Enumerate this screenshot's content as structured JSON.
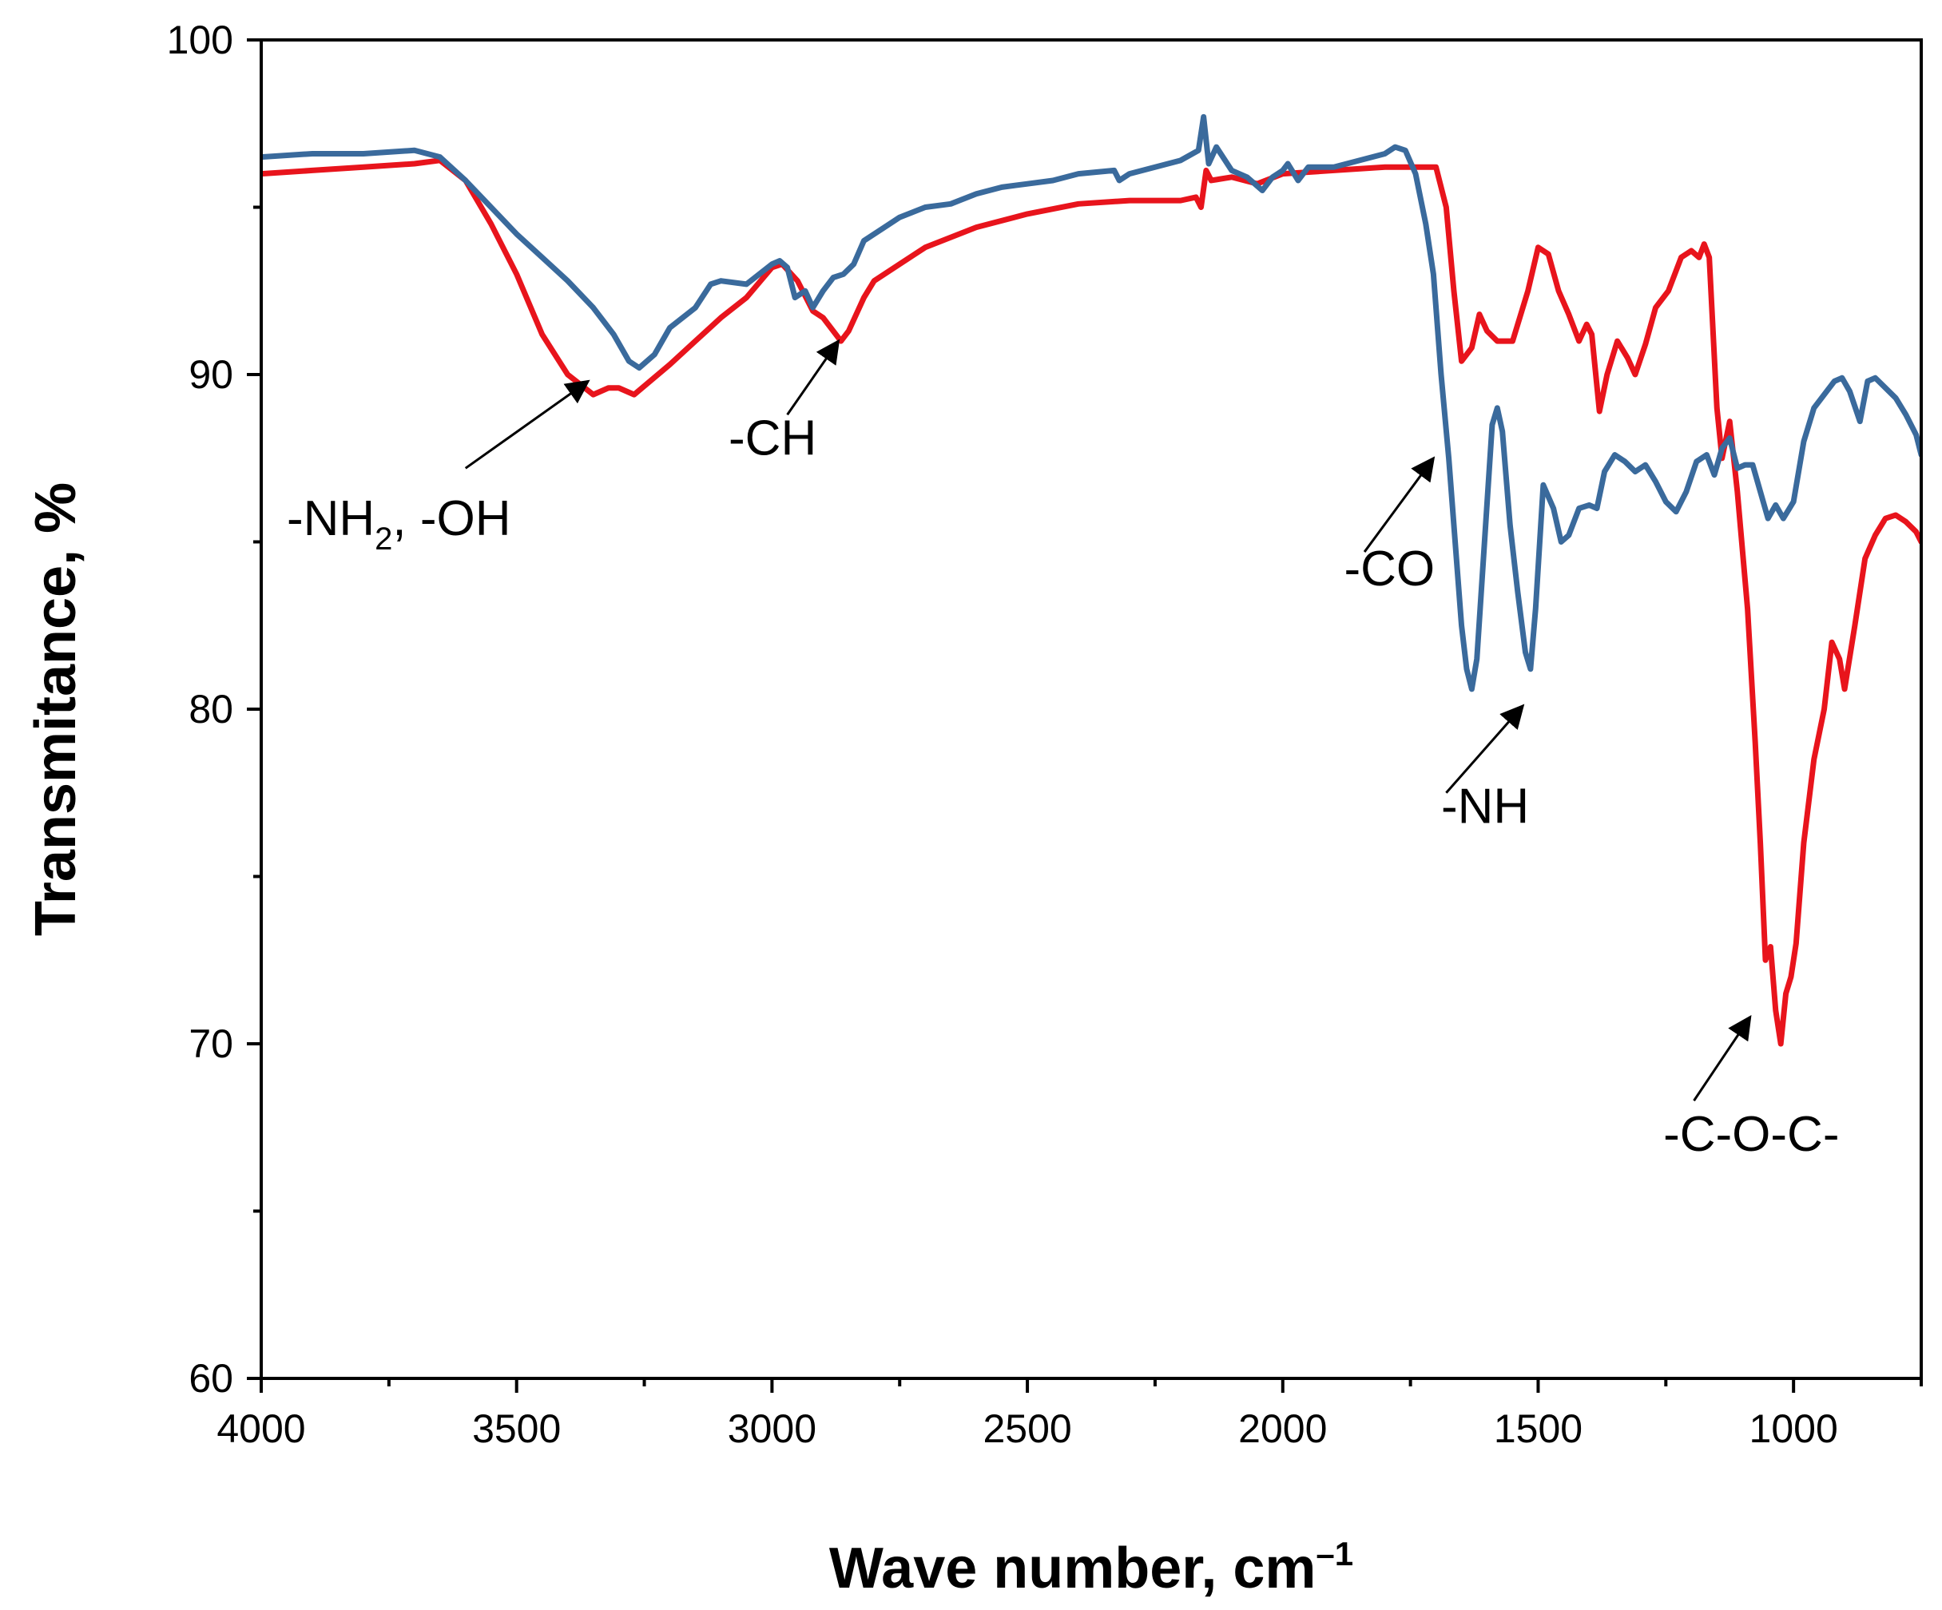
{
  "chart_data": {
    "type": "line",
    "title": "",
    "xlabel": "Wave number, cm",
    "xlabel_superscript": "–1",
    "ylabel": "Transmitance, %",
    "xlim": [
      4000,
      750
    ],
    "ylim": [
      60,
      100
    ],
    "x_ticks": [
      4000,
      3500,
      3000,
      2500,
      2000,
      1500,
      1000
    ],
    "x_tick_labels": [
      "4000",
      "3500",
      "3000",
      "2500",
      "2000",
      "1500",
      "1000"
    ],
    "y_ticks": [
      60,
      70,
      80,
      90,
      100
    ],
    "y_tick_labels": [
      "60",
      "70",
      "80",
      "90",
      "100"
    ],
    "grid": false,
    "series": [
      {
        "name": "red",
        "color": "#e8141c",
        "points": [
          [
            4000,
            96.0
          ],
          [
            3900,
            96.1
          ],
          [
            3800,
            96.2
          ],
          [
            3700,
            96.3
          ],
          [
            3650,
            96.4
          ],
          [
            3600,
            95.8
          ],
          [
            3550,
            94.5
          ],
          [
            3500,
            93.0
          ],
          [
            3450,
            91.2
          ],
          [
            3400,
            90.0
          ],
          [
            3350,
            89.4
          ],
          [
            3320,
            89.6
          ],
          [
            3300,
            89.6
          ],
          [
            3270,
            89.4
          ],
          [
            3200,
            90.3
          ],
          [
            3150,
            91.0
          ],
          [
            3100,
            91.7
          ],
          [
            3050,
            92.3
          ],
          [
            3000,
            93.2
          ],
          [
            2980,
            93.3
          ],
          [
            2950,
            92.8
          ],
          [
            2920,
            91.9
          ],
          [
            2900,
            91.7
          ],
          [
            2880,
            91.3
          ],
          [
            2865,
            91.0
          ],
          [
            2850,
            91.3
          ],
          [
            2820,
            92.3
          ],
          [
            2800,
            92.8
          ],
          [
            2750,
            93.3
          ],
          [
            2700,
            93.8
          ],
          [
            2600,
            94.4
          ],
          [
            2500,
            94.8
          ],
          [
            2400,
            95.1
          ],
          [
            2300,
            95.2
          ],
          [
            2200,
            95.2
          ],
          [
            2170,
            95.3
          ],
          [
            2160,
            95.0
          ],
          [
            2150,
            96.1
          ],
          [
            2140,
            95.8
          ],
          [
            2100,
            95.9
          ],
          [
            2050,
            95.7
          ],
          [
            2000,
            96.0
          ],
          [
            1900,
            96.1
          ],
          [
            1800,
            96.2
          ],
          [
            1700,
            96.2
          ],
          [
            1680,
            95.0
          ],
          [
            1665,
            92.5
          ],
          [
            1650,
            90.4
          ],
          [
            1630,
            90.8
          ],
          [
            1615,
            91.8
          ],
          [
            1600,
            91.3
          ],
          [
            1580,
            91.0
          ],
          [
            1550,
            91.0
          ],
          [
            1520,
            92.5
          ],
          [
            1500,
            93.8
          ],
          [
            1480,
            93.6
          ],
          [
            1460,
            92.5
          ],
          [
            1440,
            91.8
          ],
          [
            1420,
            91.0
          ],
          [
            1405,
            91.5
          ],
          [
            1395,
            91.2
          ],
          [
            1380,
            88.9
          ],
          [
            1365,
            90.0
          ],
          [
            1345,
            91.0
          ],
          [
            1325,
            90.5
          ],
          [
            1310,
            90.0
          ],
          [
            1290,
            90.9
          ],
          [
            1270,
            92.0
          ],
          [
            1245,
            92.5
          ],
          [
            1220,
            93.5
          ],
          [
            1200,
            93.7
          ],
          [
            1185,
            93.5
          ],
          [
            1175,
            93.9
          ],
          [
            1165,
            93.5
          ],
          [
            1150,
            89.0
          ],
          [
            1140,
            87.5
          ],
          [
            1125,
            88.6
          ],
          [
            1110,
            86.5
          ],
          [
            1090,
            83.0
          ],
          [
            1075,
            79.0
          ],
          [
            1065,
            76.0
          ],
          [
            1055,
            72.5
          ],
          [
            1045,
            72.9
          ],
          [
            1035,
            71.0
          ],
          [
            1025,
            70.0
          ],
          [
            1015,
            71.5
          ],
          [
            1005,
            72.0
          ],
          [
            995,
            73.0
          ],
          [
            980,
            76.0
          ],
          [
            960,
            78.5
          ],
          [
            940,
            80.0
          ],
          [
            925,
            82.0
          ],
          [
            910,
            81.5
          ],
          [
            900,
            80.6
          ],
          [
            880,
            82.5
          ],
          [
            860,
            84.5
          ],
          [
            840,
            85.2
          ],
          [
            820,
            85.7
          ],
          [
            800,
            85.8
          ],
          [
            780,
            85.6
          ],
          [
            760,
            85.3
          ],
          [
            750,
            85.0
          ]
        ]
      },
      {
        "name": "blue",
        "color": "#3a6a9c",
        "points": [
          [
            4000,
            96.5
          ],
          [
            3900,
            96.6
          ],
          [
            3800,
            96.6
          ],
          [
            3700,
            96.7
          ],
          [
            3650,
            96.5
          ],
          [
            3600,
            95.8
          ],
          [
            3550,
            95.0
          ],
          [
            3500,
            94.2
          ],
          [
            3450,
            93.5
          ],
          [
            3400,
            92.8
          ],
          [
            3350,
            92.0
          ],
          [
            3310,
            91.2
          ],
          [
            3280,
            90.4
          ],
          [
            3260,
            90.2
          ],
          [
            3230,
            90.6
          ],
          [
            3200,
            91.4
          ],
          [
            3150,
            92.0
          ],
          [
            3120,
            92.7
          ],
          [
            3100,
            92.8
          ],
          [
            3050,
            92.7
          ],
          [
            3000,
            93.3
          ],
          [
            2985,
            93.4
          ],
          [
            2970,
            93.2
          ],
          [
            2955,
            92.3
          ],
          [
            2935,
            92.5
          ],
          [
            2920,
            92.0
          ],
          [
            2900,
            92.5
          ],
          [
            2880,
            92.9
          ],
          [
            2860,
            93.0
          ],
          [
            2840,
            93.3
          ],
          [
            2820,
            94.0
          ],
          [
            2780,
            94.4
          ],
          [
            2750,
            94.7
          ],
          [
            2700,
            95.0
          ],
          [
            2650,
            95.1
          ],
          [
            2600,
            95.4
          ],
          [
            2550,
            95.6
          ],
          [
            2500,
            95.7
          ],
          [
            2450,
            95.8
          ],
          [
            2400,
            96.0
          ],
          [
            2330,
            96.1
          ],
          [
            2320,
            95.8
          ],
          [
            2300,
            96.0
          ],
          [
            2200,
            96.4
          ],
          [
            2165,
            96.7
          ],
          [
            2155,
            97.7
          ],
          [
            2145,
            96.3
          ],
          [
            2130,
            96.8
          ],
          [
            2100,
            96.1
          ],
          [
            2070,
            95.9
          ],
          [
            2040,
            95.5
          ],
          [
            2020,
            95.9
          ],
          [
            2000,
            96.1
          ],
          [
            1990,
            96.3
          ],
          [
            1970,
            95.8
          ],
          [
            1950,
            96.2
          ],
          [
            1900,
            96.2
          ],
          [
            1850,
            96.4
          ],
          [
            1800,
            96.6
          ],
          [
            1780,
            96.8
          ],
          [
            1760,
            96.7
          ],
          [
            1740,
            96.0
          ],
          [
            1720,
            94.5
          ],
          [
            1705,
            93.0
          ],
          [
            1690,
            90.0
          ],
          [
            1675,
            87.5
          ],
          [
            1660,
            84.5
          ],
          [
            1650,
            82.5
          ],
          [
            1640,
            81.2
          ],
          [
            1630,
            80.6
          ],
          [
            1620,
            81.5
          ],
          [
            1605,
            85.0
          ],
          [
            1590,
            88.5
          ],
          [
            1580,
            89.0
          ],
          [
            1570,
            88.3
          ],
          [
            1555,
            85.5
          ],
          [
            1540,
            83.5
          ],
          [
            1525,
            81.7
          ],
          [
            1515,
            81.2
          ],
          [
            1505,
            83.0
          ],
          [
            1490,
            86.7
          ],
          [
            1470,
            86.0
          ],
          [
            1455,
            85.0
          ],
          [
            1440,
            85.2
          ],
          [
            1420,
            86.0
          ],
          [
            1400,
            86.1
          ],
          [
            1385,
            86.0
          ],
          [
            1370,
            87.1
          ],
          [
            1350,
            87.6
          ],
          [
            1330,
            87.4
          ],
          [
            1310,
            87.1
          ],
          [
            1290,
            87.3
          ],
          [
            1270,
            86.8
          ],
          [
            1250,
            86.2
          ],
          [
            1230,
            85.9
          ],
          [
            1210,
            86.5
          ],
          [
            1190,
            87.4
          ],
          [
            1170,
            87.6
          ],
          [
            1155,
            87.0
          ],
          [
            1140,
            87.8
          ],
          [
            1125,
            88.1
          ],
          [
            1110,
            87.2
          ],
          [
            1095,
            87.3
          ],
          [
            1080,
            87.3
          ],
          [
            1065,
            86.5
          ],
          [
            1050,
            85.7
          ],
          [
            1035,
            86.1
          ],
          [
            1020,
            85.7
          ],
          [
            1000,
            86.2
          ],
          [
            980,
            88.0
          ],
          [
            960,
            89.0
          ],
          [
            940,
            89.4
          ],
          [
            920,
            89.8
          ],
          [
            905,
            89.9
          ],
          [
            890,
            89.5
          ],
          [
            870,
            88.6
          ],
          [
            855,
            89.8
          ],
          [
            840,
            89.9
          ],
          [
            820,
            89.6
          ],
          [
            800,
            89.3
          ],
          [
            780,
            88.8
          ],
          [
            760,
            88.2
          ],
          [
            750,
            87.6
          ]
        ]
      }
    ],
    "annotations": [
      {
        "label": "-NH",
        "sub": "2",
        "after": ", -OH",
        "target": [
          3360,
          89.8
        ],
        "from": [
          3600,
          87.2
        ],
        "text_at": [
          3950,
          85.2
        ]
      },
      {
        "label": "-CH",
        "sub": "",
        "after": "",
        "target": [
          2870,
          91.0
        ],
        "from": [
          2970,
          88.8
        ],
        "text_at": [
          3085,
          87.6
        ]
      },
      {
        "label": "-CO",
        "sub": "",
        "after": "",
        "target": [
          1705,
          87.5
        ],
        "from": [
          1840,
          84.7
        ],
        "text_at": [
          1880,
          83.7
        ]
      },
      {
        "label": "-NH",
        "sub": "",
        "after": "",
        "target": [
          1530,
          80.1
        ],
        "from": [
          1680,
          77.5
        ],
        "text_at": [
          1690,
          76.6
        ]
      },
      {
        "label": "-C-O-C-",
        "sub": "",
        "after": "",
        "target": [
          1085,
          70.8
        ],
        "from": [
          1195,
          68.3
        ],
        "text_at": [
          1255,
          66.8
        ]
      }
    ]
  }
}
